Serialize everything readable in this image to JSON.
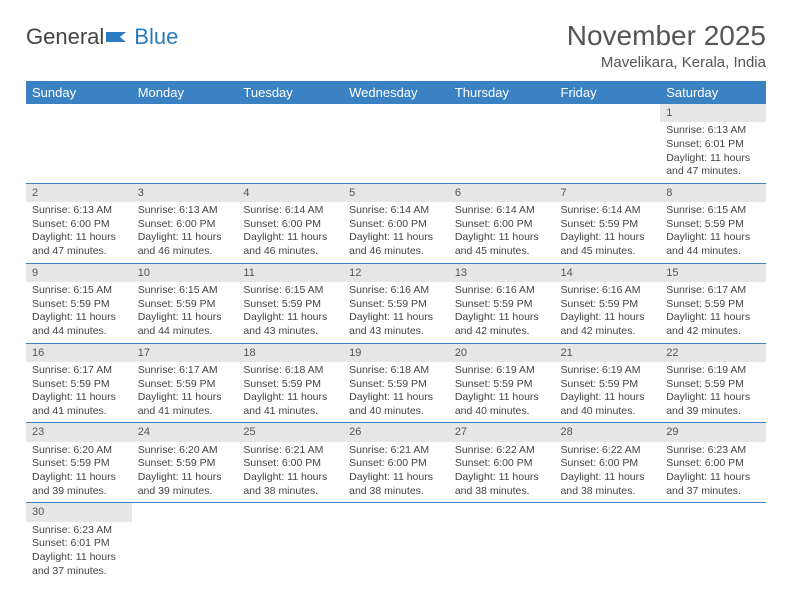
{
  "brand": {
    "part1": "General",
    "part2": "Blue"
  },
  "title": "November 2025",
  "location": "Mavelikara, Kerala, India",
  "colors": {
    "header_bg": "#3b82c4",
    "header_text": "#ffffff",
    "daynum_bg": "#e6e6e6",
    "border": "#3b82c4",
    "text": "#444444",
    "brand_blue": "#2a7bbf"
  },
  "weekdays": [
    "Sunday",
    "Monday",
    "Tuesday",
    "Wednesday",
    "Thursday",
    "Friday",
    "Saturday"
  ],
  "days": {
    "1": {
      "sunrise": "6:13 AM",
      "sunset": "6:01 PM",
      "daylight": "11 hours and 47 minutes."
    },
    "2": {
      "sunrise": "6:13 AM",
      "sunset": "6:00 PM",
      "daylight": "11 hours and 47 minutes."
    },
    "3": {
      "sunrise": "6:13 AM",
      "sunset": "6:00 PM",
      "daylight": "11 hours and 46 minutes."
    },
    "4": {
      "sunrise": "6:14 AM",
      "sunset": "6:00 PM",
      "daylight": "11 hours and 46 minutes."
    },
    "5": {
      "sunrise": "6:14 AM",
      "sunset": "6:00 PM",
      "daylight": "11 hours and 46 minutes."
    },
    "6": {
      "sunrise": "6:14 AM",
      "sunset": "6:00 PM",
      "daylight": "11 hours and 45 minutes."
    },
    "7": {
      "sunrise": "6:14 AM",
      "sunset": "5:59 PM",
      "daylight": "11 hours and 45 minutes."
    },
    "8": {
      "sunrise": "6:15 AM",
      "sunset": "5:59 PM",
      "daylight": "11 hours and 44 minutes."
    },
    "9": {
      "sunrise": "6:15 AM",
      "sunset": "5:59 PM",
      "daylight": "11 hours and 44 minutes."
    },
    "10": {
      "sunrise": "6:15 AM",
      "sunset": "5:59 PM",
      "daylight": "11 hours and 44 minutes."
    },
    "11": {
      "sunrise": "6:15 AM",
      "sunset": "5:59 PM",
      "daylight": "11 hours and 43 minutes."
    },
    "12": {
      "sunrise": "6:16 AM",
      "sunset": "5:59 PM",
      "daylight": "11 hours and 43 minutes."
    },
    "13": {
      "sunrise": "6:16 AM",
      "sunset": "5:59 PM",
      "daylight": "11 hours and 42 minutes."
    },
    "14": {
      "sunrise": "6:16 AM",
      "sunset": "5:59 PM",
      "daylight": "11 hours and 42 minutes."
    },
    "15": {
      "sunrise": "6:17 AM",
      "sunset": "5:59 PM",
      "daylight": "11 hours and 42 minutes."
    },
    "16": {
      "sunrise": "6:17 AM",
      "sunset": "5:59 PM",
      "daylight": "11 hours and 41 minutes."
    },
    "17": {
      "sunrise": "6:17 AM",
      "sunset": "5:59 PM",
      "daylight": "11 hours and 41 minutes."
    },
    "18": {
      "sunrise": "6:18 AM",
      "sunset": "5:59 PM",
      "daylight": "11 hours and 41 minutes."
    },
    "19": {
      "sunrise": "6:18 AM",
      "sunset": "5:59 PM",
      "daylight": "11 hours and 40 minutes."
    },
    "20": {
      "sunrise": "6:19 AM",
      "sunset": "5:59 PM",
      "daylight": "11 hours and 40 minutes."
    },
    "21": {
      "sunrise": "6:19 AM",
      "sunset": "5:59 PM",
      "daylight": "11 hours and 40 minutes."
    },
    "22": {
      "sunrise": "6:19 AM",
      "sunset": "5:59 PM",
      "daylight": "11 hours and 39 minutes."
    },
    "23": {
      "sunrise": "6:20 AM",
      "sunset": "5:59 PM",
      "daylight": "11 hours and 39 minutes."
    },
    "24": {
      "sunrise": "6:20 AM",
      "sunset": "5:59 PM",
      "daylight": "11 hours and 39 minutes."
    },
    "25": {
      "sunrise": "6:21 AM",
      "sunset": "6:00 PM",
      "daylight": "11 hours and 38 minutes."
    },
    "26": {
      "sunrise": "6:21 AM",
      "sunset": "6:00 PM",
      "daylight": "11 hours and 38 minutes."
    },
    "27": {
      "sunrise": "6:22 AM",
      "sunset": "6:00 PM",
      "daylight": "11 hours and 38 minutes."
    },
    "28": {
      "sunrise": "6:22 AM",
      "sunset": "6:00 PM",
      "daylight": "11 hours and 38 minutes."
    },
    "29": {
      "sunrise": "6:23 AM",
      "sunset": "6:00 PM",
      "daylight": "11 hours and 37 minutes."
    },
    "30": {
      "sunrise": "6:23 AM",
      "sunset": "6:01 PM",
      "daylight": "11 hours and 37 minutes."
    }
  },
  "labels": {
    "sunrise": "Sunrise:",
    "sunset": "Sunset:",
    "daylight": "Daylight:"
  },
  "layout": {
    "first_weekday_index": 6,
    "num_days": 30
  }
}
